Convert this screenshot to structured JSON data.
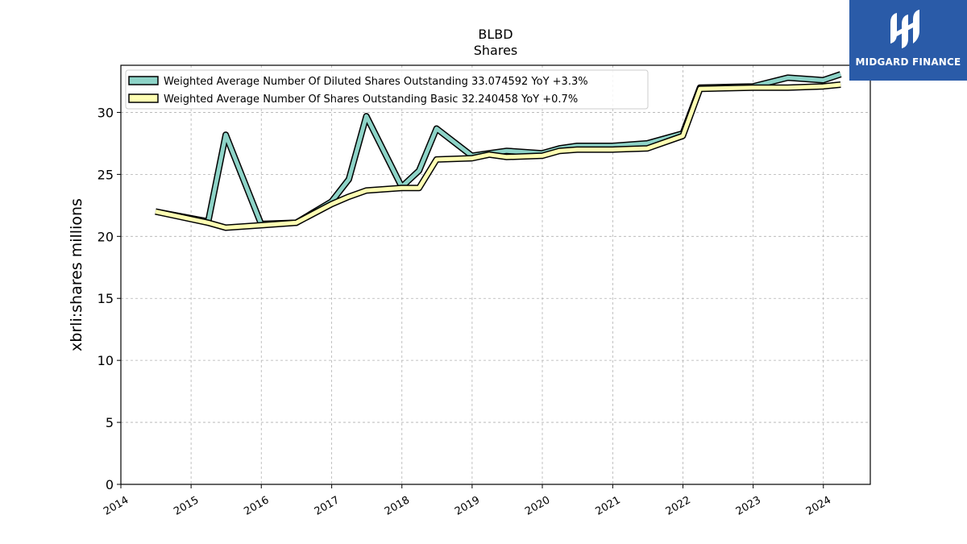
{
  "chart_data": {
    "type": "line",
    "title": "BLBD",
    "subtitle": "Shares",
    "xlabel": "",
    "ylabel": "xbrli:shares millions",
    "ylim": [
      0,
      33.8
    ],
    "xlim": [
      "2014-01-01",
      "2024-09-01"
    ],
    "yticks": [
      0,
      5,
      10,
      15,
      20,
      25,
      30
    ],
    "xticks": [
      "2014",
      "2015",
      "2016",
      "2017",
      "2018",
      "2019",
      "2020",
      "2021",
      "2022",
      "2023",
      "2024"
    ],
    "grid": true,
    "legend_position": "top-left",
    "series": [
      {
        "name": "Weighted Average Number Of Diluted Shares Outstanding  33.074592 YoY +3.3%",
        "color": "#8dd3c7",
        "points": [
          [
            "2014-06-30",
            22.0
          ],
          [
            "2015-03-31",
            21.2
          ],
          [
            "2015-06-30",
            28.2
          ],
          [
            "2015-12-31",
            21.0
          ],
          [
            "2016-06-30",
            21.1
          ],
          [
            "2016-12-31",
            22.8
          ],
          [
            "2017-03-31",
            24.6
          ],
          [
            "2017-06-30",
            29.7
          ],
          [
            "2017-12-31",
            24.0
          ],
          [
            "2018-03-31",
            25.3
          ],
          [
            "2018-06-30",
            28.7
          ],
          [
            "2018-12-31",
            26.5
          ],
          [
            "2019-03-31",
            26.7
          ],
          [
            "2019-06-30",
            26.9
          ],
          [
            "2019-12-31",
            26.7
          ],
          [
            "2020-03-31",
            27.1
          ],
          [
            "2020-06-30",
            27.3
          ],
          [
            "2020-12-31",
            27.3
          ],
          [
            "2021-06-30",
            27.5
          ],
          [
            "2021-12-31",
            28.3
          ],
          [
            "2022-03-31",
            32.0
          ],
          [
            "2022-12-31",
            32.1
          ],
          [
            "2023-06-30",
            32.8
          ],
          [
            "2023-12-31",
            32.6
          ],
          [
            "2024-03-31",
            33.07
          ]
        ]
      },
      {
        "name": "Weighted Average Number Of Shares Outstanding Basic  32.240458 YoY +0.7%",
        "color": "#ffffb3",
        "points": [
          [
            "2014-06-30",
            22.0
          ],
          [
            "2015-03-31",
            21.1
          ],
          [
            "2015-06-30",
            20.7
          ],
          [
            "2015-12-31",
            20.9
          ],
          [
            "2016-06-30",
            21.1
          ],
          [
            "2016-12-31",
            22.6
          ],
          [
            "2017-03-31",
            23.2
          ],
          [
            "2017-06-30",
            23.7
          ],
          [
            "2017-12-31",
            23.9
          ],
          [
            "2018-03-31",
            23.9
          ],
          [
            "2018-06-30",
            26.2
          ],
          [
            "2018-12-31",
            26.3
          ],
          [
            "2019-03-31",
            26.6
          ],
          [
            "2019-06-30",
            26.4
          ],
          [
            "2019-12-31",
            26.5
          ],
          [
            "2020-03-31",
            26.9
          ],
          [
            "2020-06-30",
            27.0
          ],
          [
            "2020-12-31",
            27.0
          ],
          [
            "2021-06-30",
            27.1
          ],
          [
            "2021-12-31",
            28.1
          ],
          [
            "2022-03-31",
            31.9
          ],
          [
            "2022-12-31",
            32.0
          ],
          [
            "2023-06-30",
            32.0
          ],
          [
            "2023-12-31",
            32.1
          ],
          [
            "2024-03-31",
            32.24
          ]
        ]
      }
    ]
  },
  "logo": {
    "text": "MIDGARD FINANCE",
    "background": "#2a5ba8"
  }
}
